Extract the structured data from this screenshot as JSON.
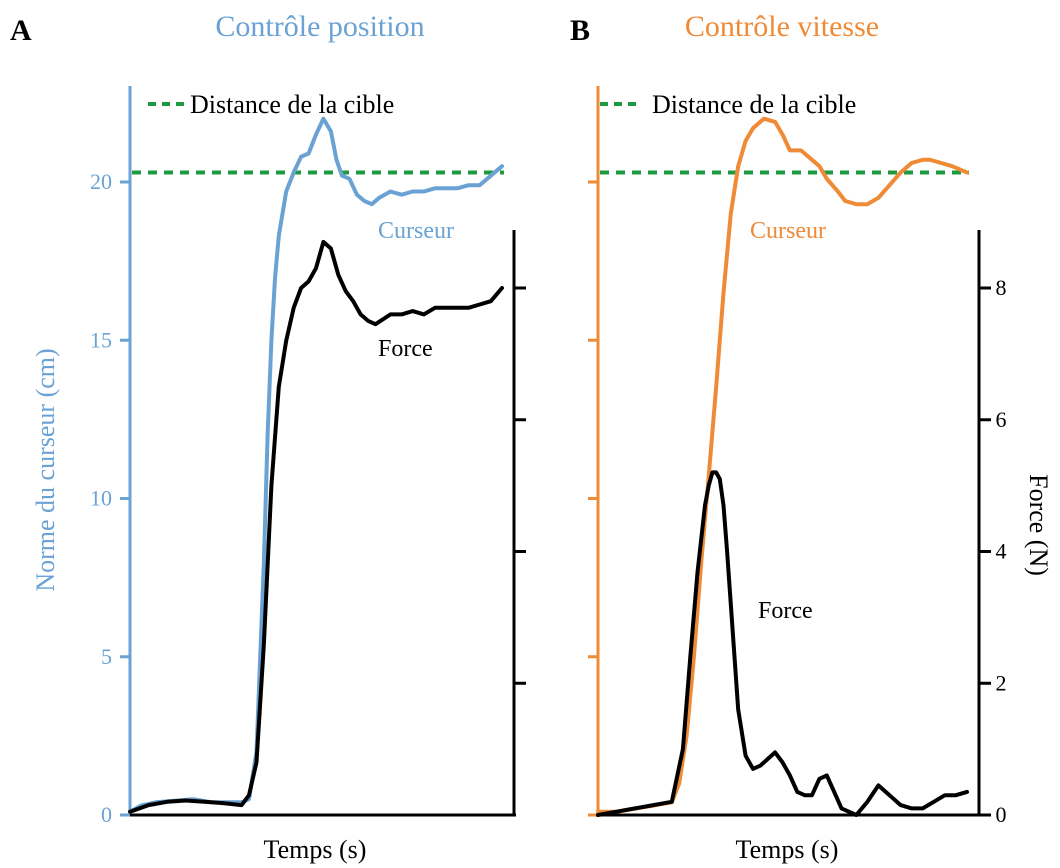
{
  "colors": {
    "position": "#6aa2d4",
    "velocity": "#ef8a37",
    "target": "#1c9a3d",
    "force": "#000000"
  },
  "chart_data": [
    {
      "type": "line",
      "panel_letter": "A",
      "title": "Contrôle position",
      "xlabel": "Temps (s)",
      "ylabel": "Norme du curseur (cm)",
      "ylim": [
        0,
        22
      ],
      "yticks": [
        0,
        5,
        10,
        15,
        20
      ],
      "y2label": "",
      "y2lim": [
        0,
        8.5
      ],
      "y2ticks": [
        2,
        4,
        6,
        8
      ],
      "y2tick_labels_shown": false,
      "legend": {
        "label": "Distance de la cible",
        "placement": "top"
      },
      "target_distance": 20.3,
      "series": [
        {
          "name": "Curseur",
          "axis": "left",
          "x": [
            0,
            0.03,
            0.07,
            0.12,
            0.17,
            0.22,
            0.27,
            0.3,
            0.32,
            0.34,
            0.36,
            0.37,
            0.38,
            0.39,
            0.4,
            0.42,
            0.44,
            0.46,
            0.48,
            0.5,
            0.52,
            0.54,
            0.555,
            0.57,
            0.59,
            0.61,
            0.63,
            0.65,
            0.67,
            0.7,
            0.73,
            0.76,
            0.79,
            0.82,
            0.85,
            0.88,
            0.91,
            0.94,
            0.97,
            1.0
          ],
          "y": [
            0.1,
            0.3,
            0.4,
            0.45,
            0.5,
            0.4,
            0.4,
            0.4,
            0.5,
            2.0,
            8.0,
            12.0,
            15.0,
            17.0,
            18.3,
            19.7,
            20.3,
            20.8,
            20.9,
            21.5,
            22.0,
            21.6,
            20.7,
            20.2,
            20.1,
            19.6,
            19.4,
            19.3,
            19.5,
            19.7,
            19.6,
            19.7,
            19.7,
            19.8,
            19.8,
            19.8,
            19.9,
            19.9,
            20.2,
            20.5
          ]
        },
        {
          "name": "Force",
          "axis": "right",
          "x": [
            0,
            0.05,
            0.1,
            0.15,
            0.2,
            0.25,
            0.3,
            0.32,
            0.34,
            0.36,
            0.38,
            0.4,
            0.42,
            0.44,
            0.46,
            0.48,
            0.5,
            0.52,
            0.54,
            0.56,
            0.58,
            0.6,
            0.62,
            0.64,
            0.66,
            0.7,
            0.73,
            0.76,
            0.79,
            0.82,
            0.85,
            0.88,
            0.91,
            0.94,
            0.97,
            1.0
          ],
          "y": [
            0.05,
            0.15,
            0.2,
            0.22,
            0.2,
            0.18,
            0.15,
            0.3,
            0.8,
            2.6,
            5.0,
            6.5,
            7.2,
            7.7,
            8.0,
            8.1,
            8.3,
            8.7,
            8.6,
            8.2,
            7.95,
            7.8,
            7.6,
            7.5,
            7.45,
            7.6,
            7.6,
            7.65,
            7.6,
            7.7,
            7.7,
            7.7,
            7.7,
            7.75,
            7.8,
            8.0
          ]
        }
      ],
      "annotations": [
        "Curseur",
        "Force"
      ]
    },
    {
      "type": "line",
      "panel_letter": "B",
      "title": "Contrôle vitesse",
      "xlabel": "Temps (s)",
      "ylabel": "",
      "ylim": [
        0,
        22
      ],
      "yticks": [
        0,
        5,
        10,
        15,
        20
      ],
      "ytick_labels_shown": false,
      "y2label": "Force (N)",
      "y2lim": [
        0,
        8.5
      ],
      "y2ticks": [
        0,
        2,
        4,
        6,
        8
      ],
      "legend": {
        "label": "Distance de la cible",
        "placement": "top"
      },
      "target_distance": 20.3,
      "series": [
        {
          "name": "Curseur",
          "axis": "left",
          "x": [
            0,
            0.05,
            0.1,
            0.15,
            0.2,
            0.22,
            0.24,
            0.26,
            0.28,
            0.3,
            0.32,
            0.34,
            0.36,
            0.38,
            0.4,
            0.42,
            0.45,
            0.48,
            0.5,
            0.52,
            0.55,
            0.58,
            0.6,
            0.62,
            0.65,
            0.67,
            0.7,
            0.73,
            0.76,
            0.79,
            0.82,
            0.85,
            0.88,
            0.9,
            0.93,
            0.96,
            0.98,
            1.0
          ],
          "y": [
            0.1,
            0.1,
            0.2,
            0.3,
            0.4,
            1.0,
            2.5,
            5.0,
            8.0,
            10.7,
            13.5,
            16.5,
            19.0,
            20.5,
            21.3,
            21.7,
            22.0,
            21.9,
            21.5,
            21.0,
            21.0,
            20.7,
            20.5,
            20.1,
            19.7,
            19.4,
            19.3,
            19.3,
            19.5,
            19.9,
            20.3,
            20.6,
            20.7,
            20.7,
            20.6,
            20.5,
            20.4,
            20.3
          ]
        },
        {
          "name": "Force",
          "axis": "right",
          "x": [
            0,
            0.05,
            0.1,
            0.15,
            0.2,
            0.23,
            0.25,
            0.27,
            0.29,
            0.3,
            0.31,
            0.32,
            0.33,
            0.34,
            0.35,
            0.36,
            0.38,
            0.4,
            0.42,
            0.44,
            0.46,
            0.48,
            0.5,
            0.52,
            0.54,
            0.56,
            0.58,
            0.6,
            0.62,
            0.64,
            0.66,
            0.68,
            0.7,
            0.73,
            0.76,
            0.79,
            0.82,
            0.85,
            0.88,
            0.91,
            0.94,
            0.97,
            1.0
          ],
          "y": [
            0.0,
            0.05,
            0.1,
            0.15,
            0.2,
            1.0,
            2.4,
            3.7,
            4.7,
            5.0,
            5.2,
            5.2,
            5.1,
            4.7,
            4.0,
            3.2,
            1.6,
            0.9,
            0.7,
            0.75,
            0.85,
            0.95,
            0.8,
            0.6,
            0.35,
            0.3,
            0.3,
            0.55,
            0.6,
            0.35,
            0.1,
            0.05,
            0.0,
            0.2,
            0.45,
            0.3,
            0.15,
            0.1,
            0.1,
            0.2,
            0.3,
            0.3,
            0.35
          ]
        }
      ],
      "annotations": [
        "Curseur",
        "Force"
      ]
    }
  ]
}
